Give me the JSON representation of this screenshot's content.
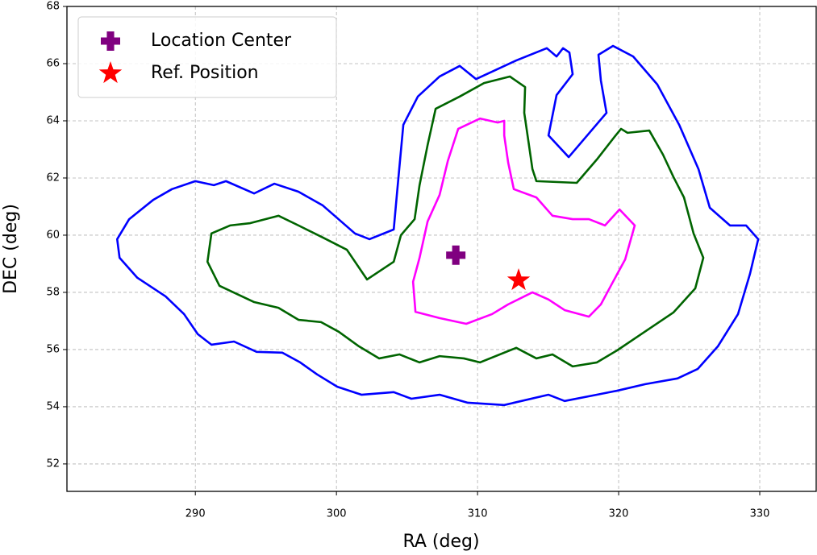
{
  "chart_data": {
    "type": "contour",
    "x_label": "RA (deg)",
    "y_label": "DEC (deg)",
    "xlim": [
      280.9,
      334
    ],
    "ylim": [
      51.04,
      68
    ],
    "xticks": [
      290,
      300,
      310,
      320,
      330
    ],
    "yticks": [
      52,
      54,
      56,
      58,
      60,
      62,
      64,
      66,
      68
    ],
    "grid": true,
    "legend_position": "upper-left",
    "series": [
      {
        "mode": "line",
        "color": "#0000ff",
        "x": [
          284.46,
          284.63,
          285.89,
          287.89,
          289.2,
          290.17,
          291.14,
          292.74,
          294.34,
          296.17,
          297.43,
          298.63,
          300.06,
          301.77,
          304.06,
          305.31,
          307.31,
          309.31,
          311.89,
          315.03,
          316.17,
          318.46,
          319.89,
          321.89,
          324.17,
          325.6,
          327.03,
          328.46,
          329.31,
          329.89,
          329.03,
          327.89,
          326.46,
          325.66,
          324.29,
          322.74,
          321.03,
          319.6,
          318.57,
          318.74,
          319.14,
          316.46,
          315.03,
          315.6,
          316.74,
          316.51,
          316.06,
          315.6,
          314.91,
          312.74,
          309.89,
          308.74,
          307.31,
          305.77,
          304.74,
          304.29,
          304.06,
          302.34,
          301.31,
          299.03,
          297.31,
          295.6,
          294.17,
          292.17,
          291.31,
          290.0,
          288.34,
          287.03,
          285.31
        ],
        "values": [
          59.86,
          59.21,
          58.51,
          57.86,
          57.24,
          56.54,
          56.17,
          56.28,
          55.92,
          55.89,
          55.55,
          55.13,
          54.7,
          54.42,
          54.51,
          54.28,
          54.42,
          54.14,
          54.06,
          54.42,
          54.2,
          54.42,
          54.56,
          54.79,
          54.99,
          55.32,
          56.11,
          57.24,
          58.65,
          59.86,
          60.34,
          60.34,
          60.96,
          62.31,
          63.86,
          65.27,
          66.25,
          66.62,
          66.31,
          65.41,
          64.28,
          62.73,
          63.49,
          64.9,
          65.63,
          66.39,
          66.54,
          66.25,
          66.54,
          66.11,
          65.46,
          65.92,
          65.55,
          64.85,
          63.86,
          61.46,
          60.2,
          59.86,
          60.06,
          61.04,
          61.52,
          61.8,
          61.46,
          61.89,
          61.75,
          61.89,
          61.61,
          61.24,
          60.56
        ]
      },
      {
        "mode": "line",
        "color": "#006400",
        "x": [
          291.14,
          290.86,
          291.71,
          294.17,
          295.89,
          297.31,
          298.91,
          300.17,
          301.6,
          303.03,
          304.46,
          305.89,
          307.31,
          309.03,
          310.17,
          312.74,
          314.17,
          315.31,
          316.74,
          318.46,
          319.89,
          321.6,
          323.89,
          325.43,
          326.0,
          325.31,
          324.63,
          323.89,
          323.14,
          322.17,
          320.63,
          320.17,
          319.71,
          318.46,
          317.03,
          314.17,
          313.89,
          313.6,
          313.31,
          313.37,
          312.29,
          310.46,
          308.74,
          307.03,
          306.46,
          305.89,
          305.54,
          304.57,
          304.06,
          302.17,
          300.74,
          299.03,
          297.31,
          295.89,
          293.89,
          292.46
        ],
        "values": [
          60.06,
          59.07,
          58.23,
          57.66,
          57.46,
          57.04,
          56.96,
          56.62,
          56.11,
          55.69,
          55.83,
          55.55,
          55.77,
          55.69,
          55.55,
          56.06,
          55.69,
          55.83,
          55.41,
          55.55,
          55.97,
          56.54,
          57.3,
          58.14,
          59.21,
          60.06,
          61.32,
          62.03,
          62.82,
          63.66,
          63.58,
          63.72,
          63.44,
          62.65,
          61.83,
          61.89,
          62.31,
          63.3,
          64.28,
          65.18,
          65.55,
          65.32,
          64.85,
          64.42,
          63.15,
          61.75,
          60.56,
          60.0,
          59.07,
          58.45,
          59.49,
          59.92,
          60.34,
          60.68,
          60.42,
          60.34
        ]
      },
      {
        "mode": "line",
        "color": "#ff00ff",
        "x": [
          305.43,
          305.6,
          307.31,
          309.2,
          311.03,
          312.17,
          313.89,
          315.03,
          316.17,
          317.89,
          318.74,
          319.6,
          320.46,
          321.14,
          320.06,
          319.03,
          317.89,
          316.74,
          315.31,
          314.17,
          312.57,
          312.17,
          311.89,
          311.89,
          311.43,
          310.17,
          308.63,
          307.89,
          307.31,
          306.46,
          305.89
        ],
        "values": [
          58.37,
          57.32,
          57.1,
          56.9,
          57.24,
          57.58,
          58.0,
          57.75,
          57.38,
          57.15,
          57.58,
          58.37,
          59.15,
          60.34,
          60.9,
          60.34,
          60.56,
          60.56,
          60.68,
          61.32,
          61.61,
          62.54,
          63.49,
          64.0,
          63.94,
          64.08,
          63.72,
          62.59,
          61.41,
          60.48,
          59.21
        ]
      },
      {
        "mode": "marker",
        "marker": "plus",
        "name": "Location Center",
        "color": "#800080",
        "x": [
          308.46
        ],
        "values": [
          59.3
        ]
      },
      {
        "mode": "marker",
        "marker": "star",
        "name": "Ref. Position",
        "color": "#ff0000",
        "x": [
          312.91
        ],
        "values": [
          58.42
        ]
      }
    ]
  }
}
